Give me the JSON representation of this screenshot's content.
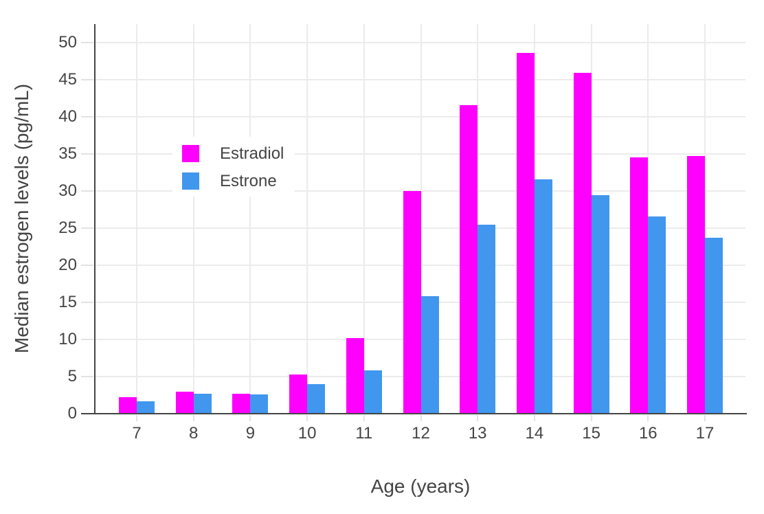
{
  "chart_data": {
    "type": "bar",
    "title": "",
    "xlabel": "Age (years)",
    "ylabel": "Median estrogen levels (pg/mL)",
    "categories": [
      "7",
      "8",
      "9",
      "10",
      "11",
      "12",
      "13",
      "14",
      "15",
      "16",
      "17"
    ],
    "series": [
      {
        "name": "Estradiol",
        "color": "#FF00FF",
        "values": [
          2.2,
          3.0,
          2.7,
          5.3,
          10.2,
          30.0,
          41.6,
          48.6,
          45.9,
          34.5,
          34.7
        ]
      },
      {
        "name": "Estrone",
        "color": "#4196EE",
        "values": [
          1.7,
          2.7,
          2.6,
          4.0,
          5.8,
          15.8,
          25.5,
          31.6,
          29.4,
          26.6,
          23.7
        ]
      }
    ],
    "ylim": [
      0,
      52.5
    ],
    "yticks": [
      0,
      5,
      10,
      15,
      20,
      25,
      30,
      35,
      40,
      45,
      50
    ],
    "grid": true,
    "legend_position": "inside-top-left",
    "colors": {
      "gridline": "#ebebeb",
      "axis_line": "#444444",
      "tick_mark": "#e2e2e2",
      "text": "#444444",
      "background": "#ffffff"
    }
  }
}
